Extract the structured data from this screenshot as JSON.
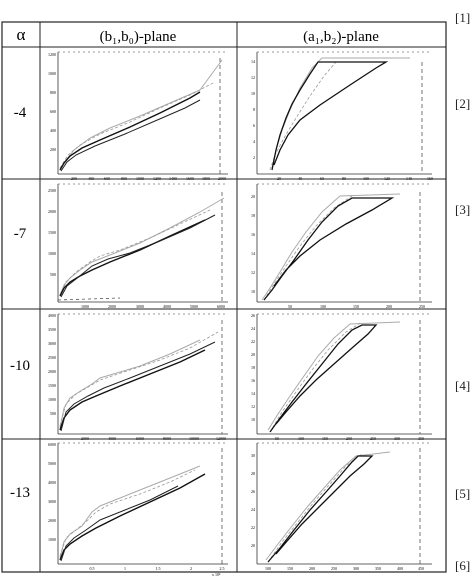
{
  "table": {
    "header": {
      "alpha": "α",
      "left": "(b₁,b₀)-plane",
      "right": "(a₁,b₂)-plane"
    },
    "rows": [
      {
        "alpha": "-4",
        "left": {
          "yticks": [
            "1200",
            "1000",
            "800",
            "600",
            "400",
            "200"
          ],
          "xticks": [
            "200",
            "400",
            "600",
            "800",
            "1000",
            "1200",
            "1400",
            "1600",
            "1800",
            "2000"
          ]
        },
        "right": {
          "yticks": [
            "14",
            "12",
            "10",
            "8",
            "6",
            "4",
            "2"
          ],
          "xticks": [
            "20",
            "40",
            "60",
            "80",
            "100",
            "120",
            "140",
            "160"
          ]
        }
      },
      {
        "alpha": "-7",
        "left": {
          "yticks": [
            "2500",
            "2000",
            "1500",
            "1000",
            "500"
          ],
          "xticks": [
            "1000",
            "2000",
            "3000",
            "4000",
            "5000",
            "6000"
          ]
        },
        "right": {
          "yticks": [
            "20",
            "18",
            "16",
            "14",
            "12",
            "10"
          ],
          "xticks": [
            "50",
            "100",
            "150",
            "200",
            "250"
          ]
        }
      },
      {
        "alpha": "-10",
        "left": {
          "yticks": [
            "4000",
            "3500",
            "3000",
            "2500",
            "2000",
            "1500",
            "1000",
            "500"
          ],
          "xticks": [
            "2000",
            "4000",
            "6000",
            "8000",
            "10000",
            "12000"
          ]
        },
        "right": {
          "yticks": [
            "26",
            "24",
            "22",
            "20",
            "18",
            "16",
            "14",
            "12",
            "10"
          ],
          "xticks": [
            "50",
            "100",
            "150",
            "200",
            "250",
            "300",
            "350"
          ]
        }
      },
      {
        "alpha": "-13",
        "left": {
          "yticks": [
            "6000",
            "5000",
            "4000",
            "3000",
            "2000",
            "1000"
          ],
          "xticks": [
            "0.5",
            "1",
            "1.5",
            "2",
            "2.5"
          ],
          "exponent": "x 10⁴"
        },
        "right": {
          "yticks": [
            "30",
            "28",
            "26",
            "24",
            "22",
            "20"
          ],
          "xticks": [
            "100",
            "150",
            "200",
            "250",
            "300",
            "350",
            "400",
            "450"
          ]
        }
      }
    ]
  },
  "refs": [
    "[1]",
    "[2]",
    "[3]",
    "[4]",
    "[5]",
    "[6]"
  ],
  "colors": {
    "ink": "#111111",
    "light": "#9a9a9a",
    "grid": "#222222"
  }
}
